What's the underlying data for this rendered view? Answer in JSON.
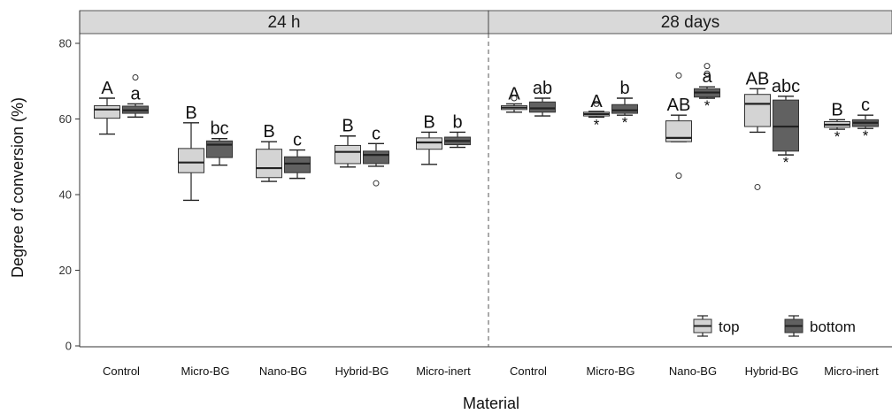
{
  "chart_data": {
    "type": "boxplot",
    "xlabel": "Material",
    "ylabel": "Degree of conversion (%)",
    "ylim": [
      0,
      84
    ],
    "yticks": [
      0,
      20,
      40,
      60,
      80
    ],
    "grid": false,
    "legend_position": "bottom-right",
    "categories": [
      "Control",
      "Micro-BG",
      "Nano-BG",
      "Hybrid-BG",
      "Micro-inert"
    ],
    "series": [
      {
        "name": "top",
        "color": "#d4d4d4"
      },
      {
        "name": "bottom",
        "color": "#616161"
      }
    ],
    "panels": [
      {
        "label": "24 h",
        "groups": [
          {
            "category": "Control",
            "top": {
              "min": 56,
              "q1": 60.2,
              "median": 62.5,
              "q3": 63.5,
              "max": 65.5,
              "outliers": [],
              "letter": "A",
              "star": false
            },
            "bottom": {
              "min": 60.5,
              "q1": 61.5,
              "median": 62.3,
              "q3": 63.4,
              "max": 64,
              "outliers": [
                71
              ],
              "letter": "a",
              "star": false
            }
          },
          {
            "category": "Micro-BG",
            "top": {
              "min": 38.5,
              "q1": 45.8,
              "median": 48.5,
              "q3": 52.2,
              "max": 59,
              "outliers": [],
              "letter": "B",
              "star": false
            },
            "bottom": {
              "min": 47.8,
              "q1": 49.8,
              "median": 53.2,
              "q3": 54.2,
              "max": 54.8,
              "outliers": [],
              "letter": "bc",
              "star": false
            }
          },
          {
            "category": "Nano-BG",
            "top": {
              "min": 43.5,
              "q1": 44.5,
              "median": 47,
              "q3": 52,
              "max": 54,
              "outliers": [],
              "letter": "B",
              "star": false
            },
            "bottom": {
              "min": 44.3,
              "q1": 45.8,
              "median": 48.2,
              "q3": 50,
              "max": 51.8,
              "outliers": [],
              "letter": "c",
              "star": false
            }
          },
          {
            "category": "Hybrid-BG",
            "top": {
              "min": 47.3,
              "q1": 48.2,
              "median": 51.3,
              "q3": 53,
              "max": 55.5,
              "outliers": [],
              "letter": "B",
              "star": false
            },
            "bottom": {
              "min": 47.5,
              "q1": 48.2,
              "median": 50.5,
              "q3": 51.5,
              "max": 53.5,
              "outliers": [
                43
              ],
              "letter": "c",
              "star": false
            }
          },
          {
            "category": "Micro-inert",
            "top": {
              "min": 48,
              "q1": 52,
              "median": 53.8,
              "q3": 55,
              "max": 56.5,
              "outliers": [],
              "letter": "B",
              "star": false
            },
            "bottom": {
              "min": 52.5,
              "q1": 53.2,
              "median": 54.2,
              "q3": 55.2,
              "max": 56.5,
              "outliers": [],
              "letter": "b",
              "star": false
            }
          }
        ]
      },
      {
        "label": "28 days",
        "groups": [
          {
            "category": "Control",
            "top": {
              "min": 61.8,
              "q1": 62.5,
              "median": 63,
              "q3": 63.5,
              "max": 64,
              "outliers": [
                65.5
              ],
              "letter": "A",
              "star": false
            },
            "bottom": {
              "min": 60.8,
              "q1": 61.8,
              "median": 62.8,
              "q3": 64.5,
              "max": 65.5,
              "outliers": [],
              "letter": "ab",
              "star": false
            }
          },
          {
            "category": "Micro-BG",
            "top": {
              "min": 60.5,
              "q1": 60.8,
              "median": 61.3,
              "q3": 61.8,
              "max": 62,
              "outliers": [
                64
              ],
              "letter": "A",
              "star": true
            },
            "bottom": {
              "min": 61,
              "q1": 61.5,
              "median": 62.3,
              "q3": 63.8,
              "max": 65.5,
              "outliers": [],
              "letter": "b",
              "star": true
            }
          },
          {
            "category": "Nano-BG",
            "top": {
              "min": 54,
              "q1": 54,
              "median": 55,
              "q3": 59.5,
              "max": 61,
              "outliers": [
                71.5,
                45
              ],
              "letter": "AB",
              "star": false
            },
            "bottom": {
              "min": 65.5,
              "q1": 65.8,
              "median": 67,
              "q3": 68,
              "max": 68.5,
              "outliers": [
                74,
                72
              ],
              "letter": "a",
              "star": true
            }
          },
          {
            "category": "Hybrid-BG",
            "top": {
              "min": 56.5,
              "q1": 58,
              "median": 64,
              "q3": 66.5,
              "max": 68,
              "outliers": [
                42
              ],
              "letter": "AB",
              "star": false
            },
            "bottom": {
              "min": 50.5,
              "q1": 51.5,
              "median": 58,
              "q3": 65,
              "max": 66,
              "outliers": [],
              "letter": "abc",
              "star": true
            }
          },
          {
            "category": "Micro-inert",
            "top": {
              "min": 57.3,
              "q1": 57.8,
              "median": 58.5,
              "q3": 59.3,
              "max": 59.8,
              "outliers": [],
              "letter": "B",
              "star": true
            },
            "bottom": {
              "min": 57.5,
              "q1": 58,
              "median": 59,
              "q3": 59.8,
              "max": 61,
              "outliers": [],
              "letter": "c",
              "star": true
            }
          }
        ]
      }
    ]
  }
}
